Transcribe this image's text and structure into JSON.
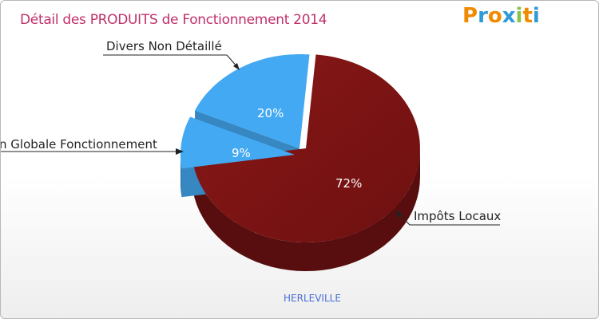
{
  "chart_data": {
    "type": "pie",
    "title": "Détail des PRODUITS de Fonctionnement 2014",
    "slices": [
      {
        "label": "Impôts Locaux",
        "value": 72,
        "pct_label": "72%",
        "color": "#7a1414"
      },
      {
        "label": "Dotation Globale Fonctionnement",
        "display_label": "n Globale Fonctionnement",
        "value": 9,
        "pct_label": "9%",
        "color": "#43a9f2"
      },
      {
        "label": "Divers Non Détaillé",
        "value": 20,
        "pct_label": "20%",
        "color": "#43a9f2"
      }
    ],
    "footer": "HERLEVILLE"
  },
  "brand": {
    "letters": [
      "P",
      "r",
      "o",
      "x",
      "i",
      "t",
      "i"
    ],
    "colors": [
      "#f08a00",
      "#2e9ad6",
      "#f08a00",
      "#2e9ad6",
      "#8bc34a",
      "#f08a00",
      "#2e9ad6"
    ]
  }
}
